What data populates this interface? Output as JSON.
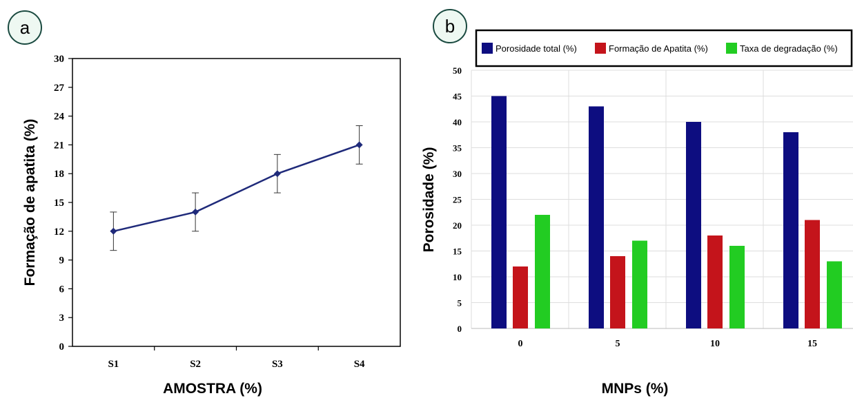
{
  "chart_data": [
    {
      "panel_label": "a",
      "type": "line",
      "title": "",
      "xlabel": "AMOSTRA (%)",
      "ylabel": "Formação de apatita  (%)",
      "categories": [
        "S1",
        "S2",
        "S3",
        "S4"
      ],
      "values": [
        12,
        14,
        18,
        21
      ],
      "error": [
        2,
        2,
        2,
        2
      ],
      "ylim": [
        0,
        30
      ],
      "yticks": [
        0,
        3,
        6,
        9,
        12,
        15,
        18,
        21,
        24,
        27,
        30
      ],
      "grid": false,
      "line_color": "#1f2a7a"
    },
    {
      "panel_label": "b",
      "type": "bar",
      "title": "",
      "xlabel": "MNPs (%)",
      "ylabel": "Porosidade  (%)",
      "categories": [
        "0",
        "5",
        "10",
        "15"
      ],
      "series": [
        {
          "name": "Porosidade total (%)",
          "values": [
            45,
            43,
            40,
            38
          ],
          "color": "#0d0d80"
        },
        {
          "name": "Formação de Apatita (%)",
          "values": [
            12,
            14,
            18,
            21
          ],
          "color": "#c4141b"
        },
        {
          "name": "Taxa de degradação (%)",
          "values": [
            22,
            17,
            16,
            13
          ],
          "color": "#22cc22"
        }
      ],
      "ylim": [
        0,
        50
      ],
      "yticks": [
        0,
        5,
        10,
        15,
        20,
        25,
        30,
        35,
        40,
        45,
        50
      ],
      "grid": true,
      "legend_position": "top"
    }
  ]
}
